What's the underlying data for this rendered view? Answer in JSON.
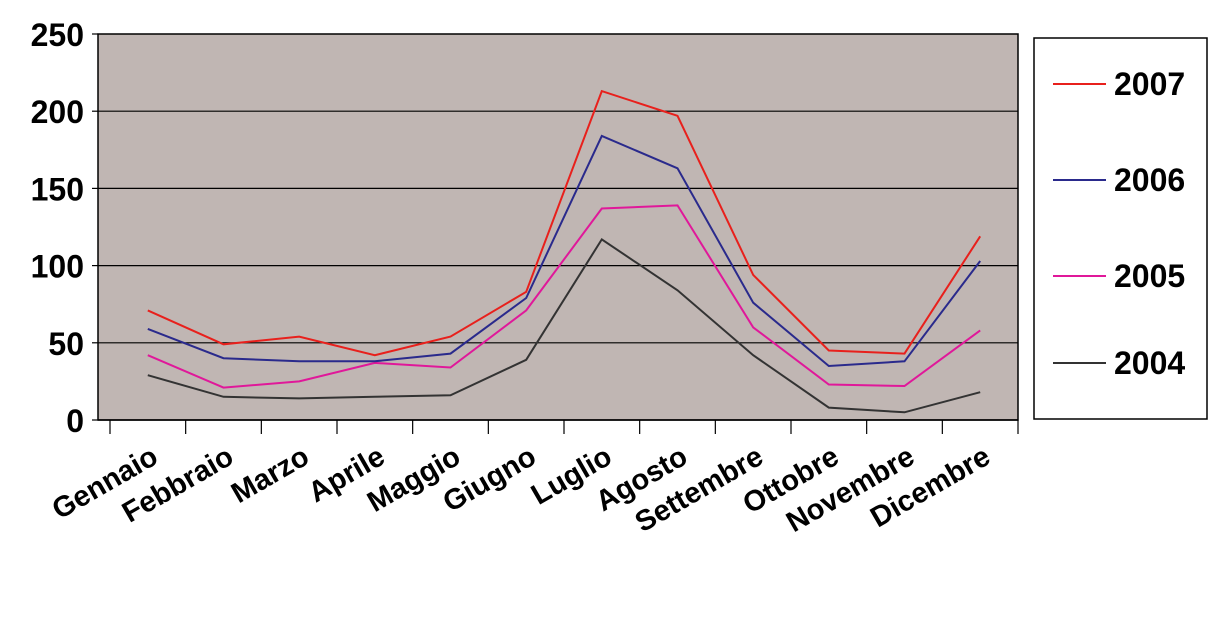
{
  "chart_data": {
    "type": "line",
    "categories": [
      "Gennaio",
      "Febbraio",
      "Marzo",
      "Aprile",
      "Maggio",
      "Giugno",
      "Luglio",
      "Agosto",
      "Settembre",
      "Ottobre",
      "Novembre",
      "Dicembre"
    ],
    "series": [
      {
        "name": "2007",
        "color": "#e8201c",
        "values": [
          71,
          49,
          54,
          42,
          54,
          83,
          213,
          197,
          94,
          45,
          43,
          119
        ]
      },
      {
        "name": "2006",
        "color": "#2a2a8c",
        "values": [
          59,
          40,
          38,
          38,
          43,
          79,
          184,
          163,
          76,
          35,
          38,
          103
        ]
      },
      {
        "name": "2005",
        "color": "#e0189a",
        "values": [
          42,
          21,
          25,
          37,
          34,
          71,
          137,
          139,
          60,
          23,
          22,
          58
        ]
      },
      {
        "name": "2004",
        "color": "#333333",
        "values": [
          29,
          15,
          14,
          15,
          16,
          39,
          117,
          84,
          42,
          8,
          5,
          18
        ]
      }
    ],
    "ylim": [
      0,
      250
    ],
    "yticks": [
      0,
      50,
      100,
      150,
      200,
      250
    ],
    "grid": true,
    "legend": "right",
    "plot_background": "#c0b6b3"
  }
}
